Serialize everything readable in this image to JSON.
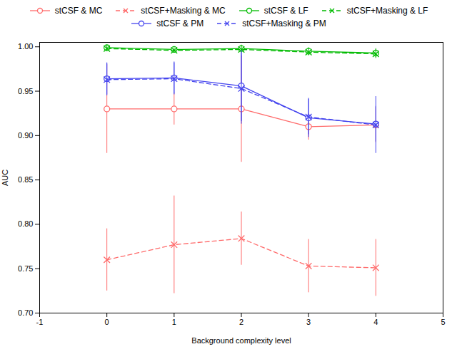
{
  "chart_data": {
    "type": "line",
    "xlabel": "Background complexity level",
    "ylabel": "AUC",
    "x": [
      0,
      1,
      2,
      3,
      4
    ],
    "xlim": [
      -1,
      5
    ],
    "ylim": [
      0.7,
      1.005
    ],
    "xticks": [
      -1,
      0,
      1,
      2,
      3,
      4,
      5
    ],
    "yticks": [
      {
        "value": 0.7,
        "label": "0.70"
      },
      0.75,
      {
        "value": 0.8,
        "label": "0.80"
      },
      0.85,
      {
        "value": 0.9,
        "label": "0.90"
      },
      0.95,
      {
        "value": 1.0,
        "label": "1.00"
      }
    ],
    "legend": "top",
    "series": [
      {
        "name": "stCSF & MC",
        "color": "#FF6B6B",
        "marker": "circle",
        "line_style": "solid",
        "values": [
          0.93,
          0.93,
          0.93,
          0.91,
          0.912
        ],
        "yerr": [
          0.05,
          0.018,
          0.06,
          0.015,
          0.02
        ]
      },
      {
        "name": "stCSF+Masking & MC",
        "color": "#FF6B6B",
        "marker": "x",
        "line_style": "dashed",
        "values": [
          0.76,
          0.777,
          0.784,
          0.753,
          0.751
        ],
        "yerr": [
          0.035,
          0.055,
          0.03,
          0.03,
          0.032
        ]
      },
      {
        "name": "stCSF & LF",
        "color": "#00BB00",
        "marker": "circle",
        "line_style": "solid",
        "values": [
          0.999,
          0.997,
          0.998,
          0.995,
          0.993
        ],
        "yerr": [
          0.003,
          0.003,
          0.004,
          0.004,
          0.005
        ]
      },
      {
        "name": "stCSF+Masking & LF",
        "color": "#00BB00",
        "marker": "x",
        "line_style": "dashed",
        "values": [
          0.998,
          0.996,
          0.997,
          0.994,
          0.992
        ],
        "yerr": [
          0.003,
          0.003,
          0.004,
          0.004,
          0.005
        ]
      },
      {
        "name": "stCSF & PM",
        "color": "#4444EE",
        "marker": "circle",
        "line_style": "solid",
        "values": [
          0.964,
          0.965,
          0.956,
          0.92,
          0.913
        ],
        "yerr": [
          0.018,
          0.018,
          0.04,
          0.022,
          0.02
        ]
      },
      {
        "name": "stCSF+Masking & PM",
        "color": "#4444EE",
        "marker": "x",
        "line_style": "dashed",
        "values": [
          0.963,
          0.964,
          0.953,
          0.921,
          0.912
        ],
        "yerr": [
          0.018,
          0.018,
          0.04,
          0.02,
          0.032
        ]
      }
    ]
  }
}
